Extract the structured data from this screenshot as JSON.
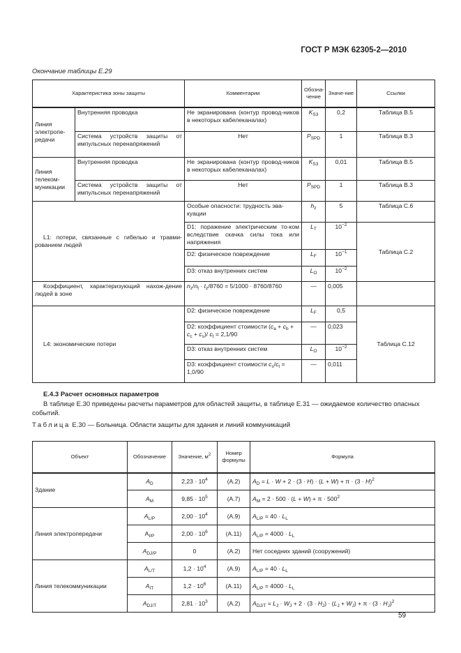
{
  "header": {
    "doc_id": "ГОСТ Р МЭК 62305-2—2010"
  },
  "table_e29": {
    "continuation_caption": "Окончание таблицы Е.29",
    "columns": [
      "Характеристика зоны защиты",
      "Комментарии",
      "Обозна-чение",
      "Значе-ние",
      "Ссылки"
    ],
    "rows": [
      {
        "group": "Линия электропе-редачи",
        "item": "Внутренняя проводка",
        "comment": "Не экранирована (контур провод-ников в некоторых кабелеканалах)",
        "symbol": "<i>K</i><sub>S3</sub>",
        "value": "0,2",
        "ref": "Таблица В.5"
      },
      {
        "item": "Система устройств защиты от импульсных перенапряжений",
        "comment": "Нет",
        "symbol": "<i>P</i><sub>SPD</sub>",
        "value": "1",
        "ref": "Таблица В.3"
      },
      {
        "group": "Линия телеком-муникации",
        "item": "Внутренняя проводка",
        "comment": "Не экранирована (контур провод-ников в некоторых кабелеканалах)",
        "symbol": "<i>K</i><sub>S3</sub>",
        "value": "0,01",
        "ref": "Таблица В.5"
      },
      {
        "item": "Система устройств защиты от импульсных перенапряжений",
        "comment": "Нет",
        "symbol": "<i>P</i><sub>SPD</sub>",
        "value": "1",
        "ref": "Таблица В.3"
      },
      {
        "group": "L1: потери, связанные с гибелью и травми-рованием людей",
        "comment": "Особые опасности: трудность эва-куации",
        "symbol": "<i>h</i><sub>z</sub>",
        "value": "5",
        "ref": "Таблица С.6"
      },
      {
        "comment": "D1: поражение электрическим то-ком вследствие скачка силы тока или напряжения",
        "symbol": "<i>L</i><sub>T</sub>",
        "value": "10<sup>−2</sup>",
        "ref": "Таблица С.2"
      },
      {
        "comment": "D2: физическое повреждение",
        "symbol": "<i>L</i><sub>F</sub>",
        "value": "10<sup>−1</sup>"
      },
      {
        "comment": "D3: отказ внутренних систем",
        "symbol": "<i>L</i><sub>O</sub>",
        "value": "10<sup>−2</sup>"
      },
      {
        "group": "Коэффициент, характеризующий нахож-дение людей в зоне",
        "comment": "<i>n</i><sub>z</sub>/<i>n</i><sub>t</sub> · <i>t</i><sub>z</sub>/8760 = 5/1000 · 8760/8760",
        "symbol": "—",
        "value": "0,005",
        "ref": ""
      },
      {
        "group": "L4: экономические потери",
        "comment": "D2: физическое повреждение",
        "symbol": "<i>L</i><sub>F</sub>",
        "value": "0,5",
        "ref": "Таблица С.12"
      },
      {
        "comment": "D2: коэффициент стоимости (<i>c</i><sub>a</sub> + <i>c</i><sub>b</sub> + <i>c</i><sub>c</sub> + <i>c</i><sub>s</sub>)/ <i>c</i><sub>t</sub> = 2,1/90",
        "symbol": "—",
        "value": "0,023"
      },
      {
        "comment": "D3: отказ внутренних систем",
        "symbol": "<i>L</i><sub>O</sub>",
        "value": "10<sup>−2</sup>"
      },
      {
        "comment": "D3: коэффициент стоимости <i>c</i><sub>s</sub>/<i>c</i><sub>t</sub> = 1,0/90",
        "symbol": "—",
        "value": "0,011"
      }
    ]
  },
  "section": {
    "heading": "Е.4.3 Расчет основных параметров",
    "paragraph": "В таблице Е.30 приведены расчеты параметров для областей защиты, в таблице Е.31 — ожидаемое количество опасных событий."
  },
  "table_e30": {
    "caption_label": "Таблица",
    "caption_text": " Е.30 — Больница. Области защиты для здания и линий коммуникаций",
    "columns": [
      "Объект",
      "Обозначение",
      "Значение, м<sup>2</sup>",
      "Номер формулы",
      "Формула"
    ],
    "groups": [
      "Здание",
      "Линия электропередачи",
      "Линия телекоммуникации"
    ],
    "rows": [
      {
        "symbol": "<i>A</i><sub>D</sub>",
        "value": "2,23 · 10<sup>4</sup>",
        "formula_no": "(А.2)",
        "formula": "<i>A</i><sub>D</sub> = <i>L</i> · <i>W</i> + 2 · (3 · <i>H</i>) · (<i>L</i> + <i>W</i>) + π · (3 · <i>H</i>)<sup>2</sup>"
      },
      {
        "symbol": "<i>A</i><sub>M</sub>",
        "value": "9,85 · 10<sup>5</sup>",
        "formula_no": "(А.7)",
        "formula": "<i>A</i><sub>M</sub> = 2 · 500 · (<i>L</i> + <i>W</i>) + π · 500<sup>2</sup>"
      },
      {
        "symbol": "<i>A</i><sub>L/P</sub>",
        "value": "2,00 · 10<sup>4</sup>",
        "formula_no": "(А.9)",
        "formula": "<i>A</i><sub>L/P</sub> = 40 · <i>L</i><sub>L</sub>"
      },
      {
        "symbol": "A<sub>I/P</sub>",
        "value": "2,00 · 10<sup>6</sup>",
        "formula_no": "(А.11)",
        "formula": "<i>A</i><sub>L/P</sub> = 4000 · <i>L</i><sub>L</sub>"
      },
      {
        "symbol": "<i>A</i><sub>DJ/P</sub>",
        "value": "0",
        "formula_no": "(А.2)",
        "formula": "Нет соседних зданий (сооружений)"
      },
      {
        "symbol": "<i>A</i><sub>L/T</sub>",
        "value": "1,2 · 10<sup>4</sup>",
        "formula_no": "(А.9)",
        "formula": "<i>A</i><sub>L/P</sub> = 40 · <i>L</i><sub>L</sub>"
      },
      {
        "symbol": "<i>A</i><sub>IT</sub>",
        "value": "1,2 · 10<sup>6</sup>",
        "formula_no": "(А.11)",
        "formula": "<i>A</i><sub>L/P</sub> = 4000 · <i>L</i><sub>L</sub>"
      },
      {
        "symbol": "<i>A</i><sub>DJ/T</sub>",
        "value": "2,81 · 10<sup>3</sup>",
        "formula_no": "(А.2)",
        "formula": "<i>A</i><sub>DJ/T</sub> = <i>L</i><sub>J</sub> · <i>W</i><sub>J</sub> + 2 · (3 · <i>H</i><sub>J</sub>) · (<i>L</i><sub>J</sub> + <i>W</i><sub>J</sub>) + π · (3 · <i>H</i><sub>J</sub>)<sup>2</sup>"
      }
    ]
  },
  "footer": {
    "page_number": "59"
  }
}
